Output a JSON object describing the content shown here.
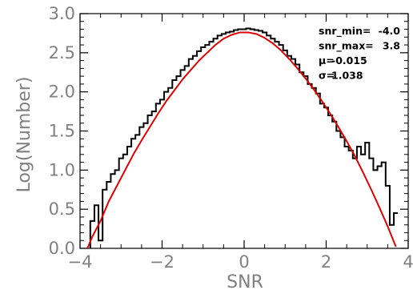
{
  "chart_data": {
    "type": "line",
    "title": "",
    "xlabel": "SNR",
    "ylabel": "Log(Number)",
    "xlim": [
      -4,
      4
    ],
    "ylim": [
      0,
      3
    ],
    "x_ticks": [
      -4,
      -2,
      0,
      2,
      4
    ],
    "x_tick_labels": [
      "−4",
      "−2",
      "0",
      "2",
      "4"
    ],
    "y_ticks": [
      0.0,
      0.5,
      1.0,
      1.5,
      2.0,
      2.5,
      3.0
    ],
    "y_tick_labels": [
      "0.0",
      "0.5",
      "1.0",
      "1.5",
      "2.0",
      "2.5",
      "3.0"
    ],
    "grid": false,
    "annotations": [
      {
        "label": "snr_min=",
        "value": "-4.0"
      },
      {
        "label": "snr_max=",
        "value": "3.8"
      },
      {
        "label": "μ=",
        "value": "-0.015"
      },
      {
        "label": "σ=",
        "value": "1.038"
      }
    ],
    "series": [
      {
        "style": "histogram-step",
        "color": "#000000",
        "x": [
          -3.7,
          -3.6,
          -3.5,
          -3.4,
          -3.3,
          -3.2,
          -3.1,
          -3.0,
          -2.9,
          -2.8,
          -2.7,
          -2.6,
          -2.5,
          -2.4,
          -2.3,
          -2.2,
          -2.1,
          -2.0,
          -1.9,
          -1.8,
          -1.7,
          -1.6,
          -1.5,
          -1.4,
          -1.3,
          -1.2,
          -1.1,
          -1.0,
          -0.9,
          -0.8,
          -0.7,
          -0.6,
          -0.5,
          -0.4,
          -0.3,
          -0.2,
          -0.1,
          0.0,
          0.1,
          0.2,
          0.3,
          0.4,
          0.5,
          0.6,
          0.7,
          0.8,
          0.9,
          1.0,
          1.1,
          1.2,
          1.3,
          1.4,
          1.5,
          1.6,
          1.7,
          1.8,
          1.9,
          2.0,
          2.1,
          2.2,
          2.3,
          2.4,
          2.5,
          2.6,
          2.7,
          2.8,
          2.9,
          3.0,
          3.1,
          3.2,
          3.3,
          3.4,
          3.5,
          3.6,
          3.7
        ],
        "y": [
          0.35,
          0.55,
          0.1,
          0.75,
          0.85,
          0.95,
          1.0,
          1.15,
          1.2,
          1.3,
          1.4,
          1.45,
          1.55,
          1.6,
          1.7,
          1.75,
          1.85,
          1.9,
          2.0,
          2.05,
          2.15,
          2.2,
          2.28,
          2.33,
          2.42,
          2.46,
          2.52,
          2.57,
          2.6,
          2.64,
          2.68,
          2.72,
          2.74,
          2.76,
          2.77,
          2.79,
          2.8,
          2.8,
          2.81,
          2.8,
          2.79,
          2.78,
          2.76,
          2.72,
          2.68,
          2.64,
          2.6,
          2.53,
          2.46,
          2.42,
          2.35,
          2.25,
          2.2,
          2.1,
          2.05,
          1.98,
          1.85,
          1.8,
          1.7,
          1.62,
          1.5,
          1.42,
          1.3,
          1.25,
          1.15,
          1.3,
          1.2,
          1.35,
          1.15,
          1.0,
          1.05,
          1.1,
          0.8,
          0.3,
          0.45
        ]
      },
      {
        "style": "fit",
        "color": "#e00000",
        "x": [
          -3.9,
          -3.7,
          -3.5,
          -3.3,
          -3.1,
          -2.9,
          -2.7,
          -2.5,
          -2.3,
          -2.1,
          -1.9,
          -1.7,
          -1.5,
          -1.3,
          -1.1,
          -0.9,
          -0.7,
          -0.5,
          -0.3,
          -0.1,
          0.1,
          0.3,
          0.5,
          0.7,
          0.9,
          1.1,
          1.3,
          1.5,
          1.7,
          1.9,
          2.1,
          2.3,
          2.5,
          2.7,
          2.9,
          3.1,
          3.3,
          3.5,
          3.7
        ],
        "y": [
          -0.1,
          0.15,
          0.35,
          0.6,
          0.8,
          1.0,
          1.2,
          1.38,
          1.55,
          1.72,
          1.88,
          2.02,
          2.16,
          2.28,
          2.4,
          2.5,
          2.6,
          2.68,
          2.73,
          2.76,
          2.76,
          2.74,
          2.69,
          2.62,
          2.53,
          2.42,
          2.3,
          2.17,
          2.03,
          1.88,
          1.72,
          1.55,
          1.37,
          1.18,
          0.97,
          0.75,
          0.52,
          0.28,
          0.02
        ]
      }
    ]
  }
}
